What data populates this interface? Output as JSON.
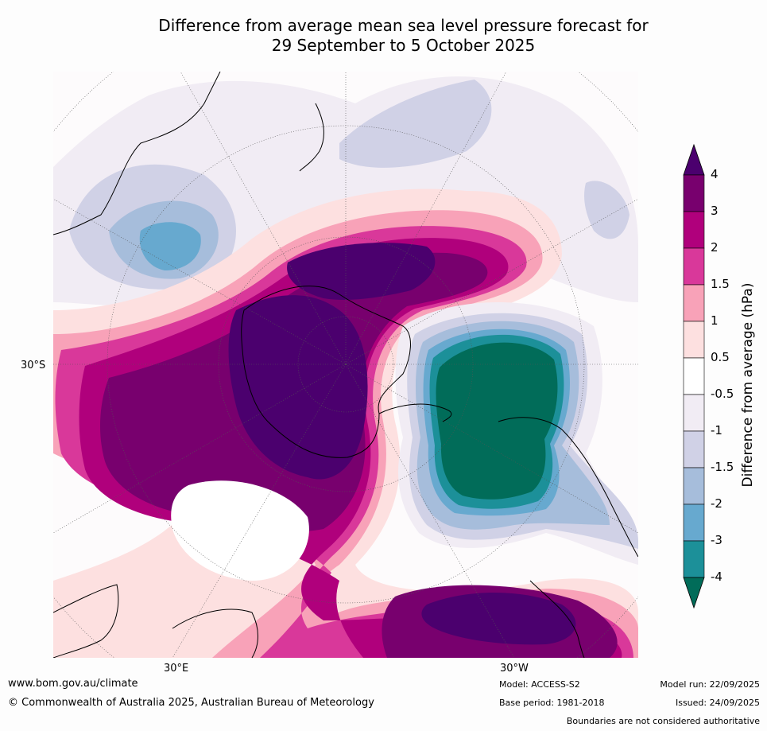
{
  "title": {
    "line1": "Difference from average mean sea level pressure forecast for",
    "line2": "29 September to 5 October 2025"
  },
  "map": {
    "lat_label": "30°S",
    "lon_label_left": "30°E",
    "lon_label_right": "30°W"
  },
  "colorbar": {
    "title": "Difference from average (hPa)",
    "tick_labels": [
      "4",
      "3",
      "2",
      "1.5",
      "1",
      "0.5",
      "-0.5",
      "-1",
      "-1.5",
      "-2",
      "-3",
      "-4"
    ],
    "colors": [
      "#4b006e",
      "#78006e",
      "#b0007c",
      "#d9389a",
      "#f8a2b8",
      "#fde0e0",
      "#ffffff",
      "#f1ecf4",
      "#d0d1e6",
      "#a6bddb",
      "#67a9cf",
      "#1c9099",
      "#016c59"
    ]
  },
  "footer": {
    "website": "www.bom.gov.au/climate",
    "copyright": "© Commonwealth of Australia 2025, Australian Bureau of Meteorology",
    "model": "Model: ACCESS-S2",
    "base_period": "Base period: 1981-2018",
    "model_run": "Model run: 22/09/2025",
    "issued": "Issued: 24/09/2025",
    "disclaimer": "Boundaries are not considered authoritative"
  }
}
